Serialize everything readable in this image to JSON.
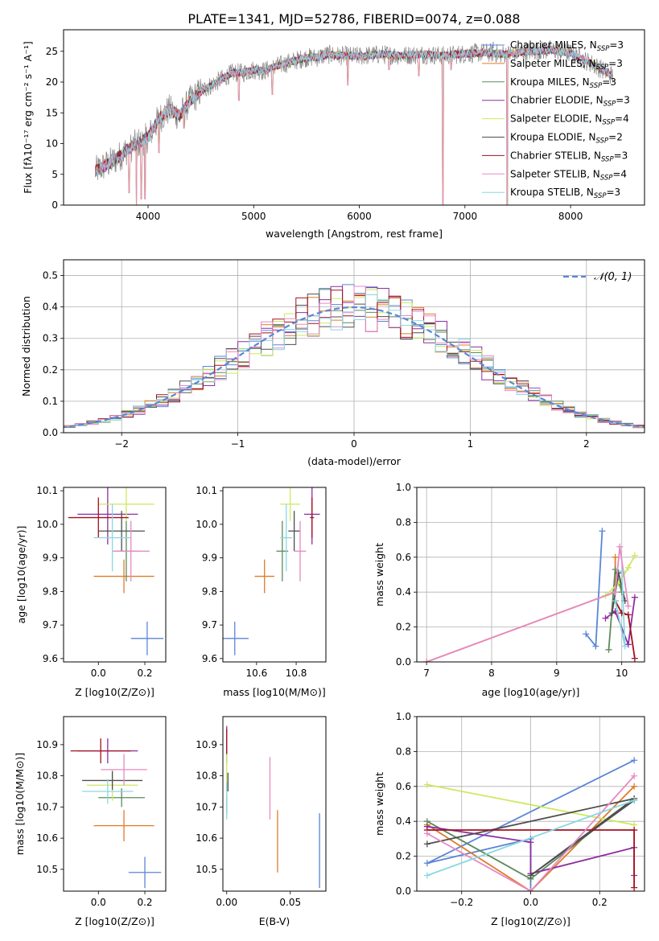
{
  "figure_title": "PLATE=1341, MJD=52786, FIBERID=0074, z=0.088",
  "palette": [
    "#5b86d6",
    "#e07b28",
    "#5d8a5d",
    "#8d2f9f",
    "#cce95f",
    "#4f4f4f",
    "#a31020",
    "#e58ac4",
    "#8ad8e2",
    "#808080"
  ],
  "chart_data": [
    {
      "id": "spectrum",
      "type": "line",
      "title": "PLATE=1341, MJD=52786, FIBERID=0074, z=0.088",
      "xlabel": "wavelength [Angstrom, rest frame]",
      "ylabel": "Flux [fλ10⁻¹⁷ erg cm⁻² s⁻¹ A⁻¹]",
      "xlim": [
        3200,
        8700
      ],
      "ylim": [
        0,
        28.5
      ],
      "xticks": [
        4000,
        5000,
        6000,
        7000,
        8000
      ],
      "yticks": [
        0,
        5,
        10,
        15,
        20,
        25
      ],
      "grid": false,
      "legend_position": "top-right",
      "legend": [
        {
          "label": "Chabrier MILES, N",
          "sub": "SSP",
          "tail": "=3",
          "color": "#5b86d6"
        },
        {
          "label": "Salpeter MILES, N",
          "sub": "SSP",
          "tail": "=3",
          "color": "#e07b28"
        },
        {
          "label": "Kroupa MILES, N",
          "sub": "SSP",
          "tail": "=3",
          "color": "#5d8a5d"
        },
        {
          "label": "Chabrier ELODIE, N",
          "sub": "SSP",
          "tail": "=3",
          "color": "#8d2f9f"
        },
        {
          "label": "Salpeter ELODIE, N",
          "sub": "SSP",
          "tail": "=4",
          "color": "#cce95f"
        },
        {
          "label": "Kroupa ELODIE, N",
          "sub": "SSP",
          "tail": "=2",
          "color": "#4f4f4f"
        },
        {
          "label": "Chabrier STELIB, N",
          "sub": "SSP",
          "tail": "=3",
          "color": "#a31020"
        },
        {
          "label": "Salpeter STELIB, N",
          "sub": "SSP",
          "tail": "=4",
          "color": "#e58ac4"
        },
        {
          "label": "Kroupa STELIB, N",
          "sub": "SSP",
          "tail": "=3",
          "color": "#8ad8e2"
        }
      ],
      "continuum": [
        [
          3500,
          5.5
        ],
        [
          3600,
          6.5
        ],
        [
          3700,
          7.5
        ],
        [
          3800,
          9
        ],
        [
          3900,
          10
        ],
        [
          4000,
          11
        ],
        [
          4100,
          14
        ],
        [
          4200,
          15.5
        ],
        [
          4300,
          14.5
        ],
        [
          4400,
          17
        ],
        [
          4500,
          18.5
        ],
        [
          4600,
          19.5
        ],
        [
          4700,
          20.5
        ],
        [
          4800,
          21.5
        ],
        [
          4900,
          21.5
        ],
        [
          5000,
          22
        ],
        [
          5100,
          21.8
        ],
        [
          5200,
          22.5
        ],
        [
          5300,
          23
        ],
        [
          5400,
          23.5
        ],
        [
          5500,
          24
        ],
        [
          5600,
          24
        ],
        [
          5700,
          24.5
        ],
        [
          5800,
          24.3
        ],
        [
          6000,
          24.2
        ],
        [
          6200,
          24.5
        ],
        [
          6400,
          24.3
        ],
        [
          6600,
          24.5
        ],
        [
          6800,
          24.3
        ],
        [
          7000,
          24.6
        ],
        [
          7200,
          24.8
        ],
        [
          7400,
          24.5
        ],
        [
          7600,
          25
        ],
        [
          7800,
          25.2
        ],
        [
          8000,
          24.7
        ],
        [
          8200,
          23
        ],
        [
          8400,
          21
        ]
      ],
      "drops": [
        [
          3820,
          2.0
        ],
        [
          3890,
          0.0
        ],
        [
          3935,
          1.0
        ],
        [
          3970,
          1.0
        ],
        [
          4102,
          8.5
        ],
        [
          4340,
          12.5
        ],
        [
          4861,
          17.0
        ],
        [
          5175,
          18.0
        ],
        [
          5890,
          19.5
        ],
        [
          6280,
          22.0
        ],
        [
          6563,
          21.0
        ],
        [
          6790,
          0.0
        ],
        [
          6870,
          22.0
        ],
        [
          7400,
          0.0
        ]
      ]
    },
    {
      "id": "residuals",
      "type": "line",
      "xlabel": "(data-model)/error",
      "ylabel": "Normed distribution",
      "xlim": [
        -2.5,
        2.5
      ],
      "ylim": [
        0,
        0.55
      ],
      "xticks": [
        -2,
        -1,
        0,
        1,
        2
      ],
      "yticks": [
        0.0,
        0.1,
        0.2,
        0.3,
        0.4,
        0.5
      ],
      "grid": true,
      "legend_position": "top-right",
      "reference_label": "𝒩(0, 1)",
      "reference_color": "#5b86d6"
    },
    {
      "id": "age-vs-Z",
      "type": "scatter",
      "xlabel": "Z [log10(Z/Z⊙)]",
      "ylabel": "age  [log10(age/yr)]",
      "xlim": [
        -0.15,
        0.29
      ],
      "ylim": [
        9.59,
        10.11
      ],
      "xticks": [
        0.0,
        0.2
      ],
      "yticks": [
        9.6,
        9.7,
        9.8,
        9.9,
        10.0,
        10.1
      ],
      "grid": false,
      "points": [
        {
          "x": 0.21,
          "y": 9.66,
          "xe": 0.07,
          "ye": 0.05,
          "c": 0
        },
        {
          "x": 0.11,
          "y": 9.845,
          "xe": 0.13,
          "ye": 0.05,
          "c": 1
        },
        {
          "x": 0.12,
          "y": 9.92,
          "xe": 0.05,
          "ye": 0.09,
          "c": 2
        },
        {
          "x": 0.04,
          "y": 10.03,
          "xe": 0.13,
          "ye": 0.09,
          "c": 3
        },
        {
          "x": 0.12,
          "y": 10.06,
          "xe": 0.12,
          "ye": 0.05,
          "c": 4
        },
        {
          "x": 0.1,
          "y": 9.98,
          "xe": 0.1,
          "ye": 0.06,
          "c": 5
        },
        {
          "x": 0.0,
          "y": 10.02,
          "xe": 0.13,
          "ye": 0.06,
          "c": 6
        },
        {
          "x": 0.14,
          "y": 9.92,
          "xe": 0.08,
          "ye": 0.09,
          "c": 7
        },
        {
          "x": 0.06,
          "y": 9.96,
          "xe": 0.08,
          "ye": 0.1,
          "c": 8
        }
      ]
    },
    {
      "id": "age-vs-mass",
      "type": "scatter",
      "xlabel": "mass [log10(M/M⊙)]",
      "ylabel": "",
      "xlim": [
        10.43,
        10.95
      ],
      "ylim": [
        9.59,
        10.11
      ],
      "xticks": [
        10.6,
        10.8
      ],
      "yticks": [
        9.6,
        9.7,
        9.8,
        9.9,
        10.0,
        10.1
      ],
      "grid": false,
      "points": [
        {
          "x": 10.49,
          "y": 9.66,
          "xe": 0.07,
          "ye": 0.05,
          "c": 0
        },
        {
          "x": 10.64,
          "y": 9.845,
          "xe": 0.05,
          "ye": 0.05,
          "c": 1
        },
        {
          "x": 10.73,
          "y": 9.92,
          "xe": 0.03,
          "ye": 0.09,
          "c": 2
        },
        {
          "x": 10.88,
          "y": 10.03,
          "xe": 0.04,
          "ye": 0.09,
          "c": 3
        },
        {
          "x": 10.77,
          "y": 10.06,
          "xe": 0.05,
          "ye": 0.05,
          "c": 4
        },
        {
          "x": 10.79,
          "y": 9.98,
          "xe": 0.03,
          "ye": 0.06,
          "c": 5
        },
        {
          "x": 10.88,
          "y": 10.02,
          "xe": 0.01,
          "ye": 0.06,
          "c": 6
        },
        {
          "x": 10.82,
          "y": 9.92,
          "xe": 0.03,
          "ye": 0.09,
          "c": 7
        },
        {
          "x": 10.75,
          "y": 9.96,
          "xe": 0.03,
          "ye": 0.1,
          "c": 8
        }
      ]
    },
    {
      "id": "weight-vs-age",
      "type": "line",
      "xlabel": "age  [log10(age/yr)]",
      "ylabel": "mass weight",
      "xlim": [
        6.85,
        10.35
      ],
      "ylim": [
        0,
        1
      ],
      "xticks": [
        7,
        8,
        9,
        10
      ],
      "yticks": [
        0.0,
        0.2,
        0.4,
        0.6,
        0.8,
        1.0
      ],
      "grid": true,
      "series": [
        {
          "c": 0,
          "x": [
            9.45,
            9.6,
            9.7
          ],
          "y": [
            0.16,
            0.09,
            0.75
          ]
        },
        {
          "c": 1,
          "x": [
            7.0,
            9.9,
            9.9
          ],
          "y": [
            0.0,
            0.4,
            0.6
          ]
        },
        {
          "c": 2,
          "x": [
            9.8,
            9.9,
            10.0
          ],
          "y": [
            0.07,
            0.53,
            0.4
          ]
        },
        {
          "c": 3,
          "x": [
            9.75,
            9.9,
            10.1,
            10.2
          ],
          "y": [
            0.25,
            0.29,
            0.1,
            0.37
          ]
        },
        {
          "c": 4,
          "x": [
            9.75,
            9.95,
            10.1,
            10.2
          ],
          "y": [
            0.38,
            0.45,
            0.54,
            0.61
          ]
        },
        {
          "c": 5,
          "x": [
            9.85,
            9.95,
            10.05
          ],
          "y": [
            0.28,
            0.51,
            0.35
          ]
        },
        {
          "c": 6,
          "x": [
            9.9,
            10.0,
            10.1,
            10.2
          ],
          "y": [
            0.35,
            0.28,
            0.27,
            0.02
          ]
        },
        {
          "c": 7,
          "x": [
            7.0,
            9.9,
            9.97,
            10.1
          ],
          "y": [
            0.0,
            0.4,
            0.66,
            0.32
          ]
        },
        {
          "c": 8,
          "x": [
            9.9,
            10.05,
            10.0
          ],
          "y": [
            0.35,
            0.09,
            0.52
          ]
        }
      ]
    },
    {
      "id": "mass-vs-Z",
      "type": "scatter",
      "xlabel": "Z [log10(Z/Z⊙)]",
      "ylabel": "mass [log10(M/M⊙)]",
      "xlim": [
        -0.15,
        0.29
      ],
      "ylim": [
        10.43,
        10.99
      ],
      "xticks": [
        0.0,
        0.2
      ],
      "yticks": [
        10.5,
        10.6,
        10.7,
        10.8,
        10.9
      ],
      "grid": false,
      "points": [
        {
          "x": 0.2,
          "y": 10.49,
          "xe": 0.07,
          "ye": 0.05,
          "c": 0
        },
        {
          "x": 0.11,
          "y": 10.64,
          "xe": 0.13,
          "ye": 0.05,
          "c": 1
        },
        {
          "x": 0.1,
          "y": 10.73,
          "xe": 0.1,
          "ye": 0.03,
          "c": 2
        },
        {
          "x": 0.04,
          "y": 10.88,
          "xe": 0.13,
          "ye": 0.04,
          "c": 3
        },
        {
          "x": 0.06,
          "y": 10.77,
          "xe": 0.11,
          "ye": 0.05,
          "c": 4
        },
        {
          "x": 0.06,
          "y": 10.785,
          "xe": 0.13,
          "ye": 0.03,
          "c": 5
        },
        {
          "x": 0.01,
          "y": 10.88,
          "xe": 0.13,
          "ye": 0.04,
          "c": 6
        },
        {
          "x": 0.11,
          "y": 10.82,
          "xe": 0.1,
          "ye": 0.05,
          "c": 7
        },
        {
          "x": 0.04,
          "y": 10.75,
          "xe": 0.11,
          "ye": 0.04,
          "c": 8
        }
      ]
    },
    {
      "id": "mass-vs-ebv",
      "type": "scatter",
      "xlabel": "E(B-V)",
      "ylabel": "",
      "xlim": [
        -0.003,
        0.078
      ],
      "ylim": [
        10.43,
        10.99
      ],
      "xticks": [
        0.0,
        0.05
      ],
      "yticks": [
        10.5,
        10.6,
        10.7,
        10.8,
        10.9
      ],
      "grid": false,
      "points": [
        {
          "x": 0.073,
          "y": 10.56,
          "xe": 0,
          "ye": 0.12,
          "c": 0
        },
        {
          "x": 0.04,
          "y": 10.59,
          "xe": 0,
          "ye": 0.1,
          "c": 1
        },
        {
          "x": 0.0,
          "y": 10.73,
          "xe": 0,
          "ye": 0.05,
          "c": 2
        },
        {
          "x": 0.0,
          "y": 10.9,
          "xe": 0,
          "ye": 0.06,
          "c": 3
        },
        {
          "x": 0.0,
          "y": 10.8,
          "xe": 0,
          "ye": 0.07,
          "c": 4
        },
        {
          "x": 0.001,
          "y": 10.78,
          "xe": 0,
          "ye": 0.03,
          "c": 5
        },
        {
          "x": 0.0,
          "y": 10.91,
          "xe": 0,
          "ye": 0.04,
          "c": 6
        },
        {
          "x": 0.034,
          "y": 10.76,
          "xe": 0,
          "ye": 0.1,
          "c": 7
        },
        {
          "x": 0.0,
          "y": 10.72,
          "xe": 0,
          "ye": 0.06,
          "c": 8
        }
      ]
    },
    {
      "id": "weight-vs-Z",
      "type": "line",
      "xlabel": "Z [log10(Z/Z⊙)]",
      "ylabel": "mass weight",
      "xlim": [
        -0.33,
        0.33
      ],
      "ylim": [
        0,
        1
      ],
      "xticks": [
        -0.2,
        0.0,
        0.2
      ],
      "yticks": [
        0.0,
        0.2,
        0.4,
        0.6,
        0.8,
        1.0
      ],
      "grid": true,
      "series": [
        {
          "c": 0,
          "x": [
            0.3,
            -0.3,
            0.0,
            0.0
          ],
          "y": [
            0.75,
            0.16,
            0.3,
            0.0
          ]
        },
        {
          "c": 1,
          "x": [
            -0.3,
            0.0,
            0.3
          ],
          "y": [
            0.38,
            0.0,
            0.6
          ]
        },
        {
          "c": 2,
          "x": [
            -0.3,
            0.0,
            0.3
          ],
          "y": [
            0.4,
            0.07,
            0.53
          ]
        },
        {
          "c": 3,
          "x": [
            -0.3,
            0.0,
            0.0,
            0.3,
            0.3
          ],
          "y": [
            0.37,
            0.28,
            0.1,
            0.25,
            0.09
          ]
        },
        {
          "c": 4,
          "x": [
            -0.3,
            0.3
          ],
          "y": [
            0.61,
            0.38
          ]
        },
        {
          "c": 5,
          "x": [
            -0.3,
            0.3,
            0.0,
            0.3
          ],
          "y": [
            0.27,
            0.53,
            0.09,
            0.52
          ]
        },
        {
          "c": 6,
          "x": [
            -0.3,
            0.3,
            0.3
          ],
          "y": [
            0.35,
            0.35,
            0.02
          ]
        },
        {
          "c": 7,
          "x": [
            -0.3,
            0.0,
            0.3
          ],
          "y": [
            0.33,
            0.0,
            0.66
          ]
        },
        {
          "c": 8,
          "x": [
            -0.3,
            0.3
          ],
          "y": [
            0.09,
            0.52
          ]
        }
      ]
    }
  ]
}
